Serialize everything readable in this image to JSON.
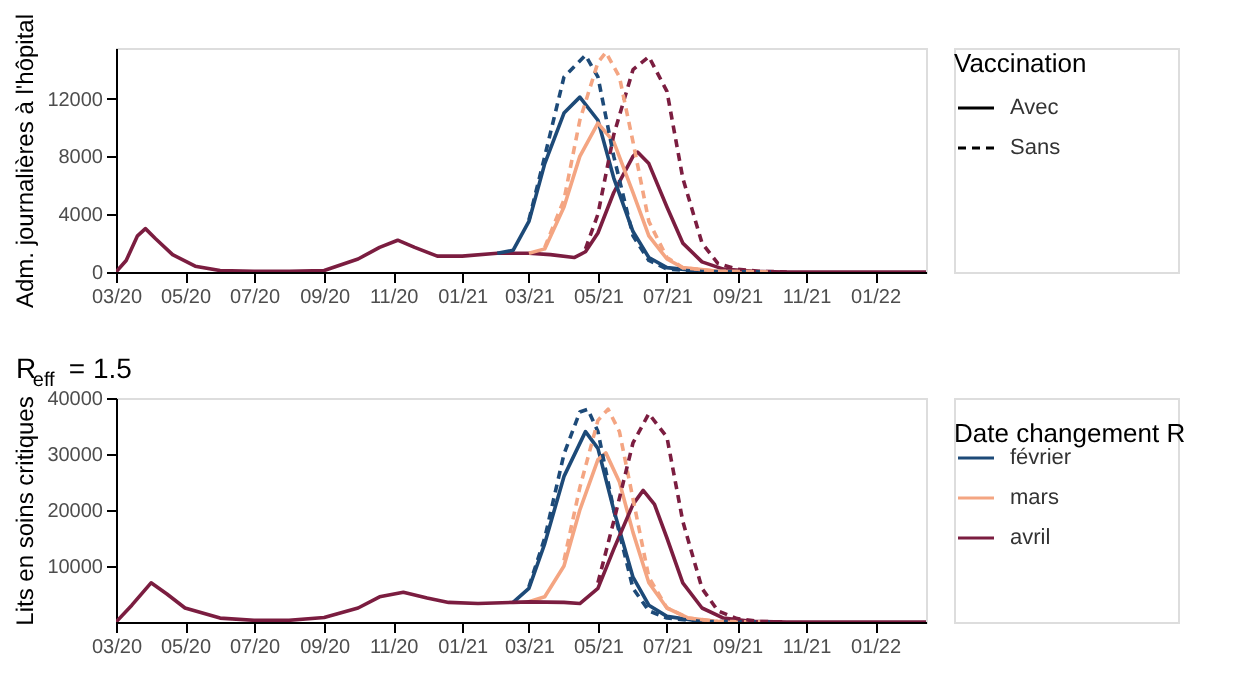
{
  "chart_data": [
    {
      "type": "line",
      "ylabel": "Adm. journalières à l'hôpital",
      "xlim": [
        "2020-03-01",
        "2022-02-15"
      ],
      "ylim": [
        0,
        15500
      ],
      "yticks": [
        0,
        4000,
        8000,
        12000
      ],
      "xticks": [
        {
          "value": "2020-03-01",
          "label": "03/20"
        },
        {
          "value": "2020-05-01",
          "label": "05/20"
        },
        {
          "value": "2020-07-01",
          "label": "07/20"
        },
        {
          "value": "2020-09-01",
          "label": "09/20"
        },
        {
          "value": "2020-11-01",
          "label": "11/20"
        },
        {
          "value": "2021-01-01",
          "label": "01/21"
        },
        {
          "value": "2021-03-01",
          "label": "03/21"
        },
        {
          "value": "2021-05-01",
          "label": "05/21"
        },
        {
          "value": "2021-07-01",
          "label": "07/21"
        },
        {
          "value": "2021-09-01",
          "label": "09/21"
        },
        {
          "value": "2021-11-01",
          "label": "11/21"
        },
        {
          "value": "2022-01-01",
          "label": "01/22"
        }
      ],
      "grid": false,
      "legend": "right",
      "legend_title": "Vaccination",
      "annotations": [
        "Avec",
        "Sans"
      ],
      "series": [
        {
          "color": "#7b1d40",
          "line_style": "solid",
          "x": [
            "2020-03-01",
            "2020-03-10",
            "2020-03-20",
            "2020-03-27",
            "2020-04-05",
            "2020-04-20",
            "2020-05-10",
            "2020-06-01",
            "2020-07-01",
            "2020-08-01",
            "2020-09-01",
            "2020-10-01",
            "2020-10-20",
            "2020-11-05",
            "2020-11-20",
            "2020-12-10",
            "2021-01-01",
            "2021-02-01",
            "2021-03-01",
            "2021-03-20",
            "2021-04-10",
            "2021-04-20",
            "2021-05-01",
            "2021-05-15",
            "2021-06-01",
            "2021-06-05",
            "2021-06-15",
            "2021-07-01",
            "2021-07-15",
            "2021-08-01",
            "2021-08-20",
            "2021-09-15",
            "2021-10-15",
            "2022-02-15"
          ],
          "values": [
            0,
            800,
            2500,
            3000,
            2300,
            1200,
            400,
            100,
            50,
            50,
            100,
            900,
            1700,
            2200,
            1700,
            1100,
            1100,
            1300,
            1300,
            1200,
            1000,
            1400,
            2700,
            5500,
            8000,
            8300,
            7500,
            4500,
            2000,
            700,
            200,
            50,
            0,
            0
          ]
        },
        {
          "color": "#7b1d40",
          "line_style": "dashed",
          "x": [
            "2021-04-20",
            "2021-05-01",
            "2021-05-15",
            "2021-06-01",
            "2021-06-15",
            "2021-07-01",
            "2021-07-15",
            "2021-08-01",
            "2021-08-15",
            "2021-09-01",
            "2021-09-20",
            "2021-10-15"
          ],
          "values": [
            1600,
            4000,
            9500,
            14000,
            14900,
            12500,
            6500,
            2000,
            600,
            200,
            50,
            0
          ]
        },
        {
          "color": "#1d4a78",
          "line_style": "solid",
          "x": [
            "2021-02-01",
            "2021-02-15",
            "2021-03-01",
            "2021-03-15",
            "2021-04-01",
            "2021-04-15",
            "2021-05-01",
            "2021-05-15",
            "2021-06-01",
            "2021-06-15",
            "2021-07-01",
            "2021-08-01",
            "2021-10-01"
          ],
          "values": [
            1300,
            1500,
            3500,
            7500,
            11000,
            12100,
            10500,
            6500,
            2800,
            1000,
            300,
            50,
            0
          ]
        },
        {
          "color": "#1d4a78",
          "line_style": "dashed",
          "x": [
            "2021-03-01",
            "2021-03-15",
            "2021-04-01",
            "2021-04-20",
            "2021-05-01",
            "2021-05-15",
            "2021-06-01",
            "2021-06-15",
            "2021-07-01",
            "2021-08-01",
            "2021-10-01"
          ],
          "values": [
            3600,
            8000,
            13500,
            15000,
            13500,
            8000,
            2500,
            800,
            200,
            30,
            0
          ]
        },
        {
          "color": "#f4a582",
          "line_style": "solid",
          "x": [
            "2021-03-01",
            "2021-03-15",
            "2021-04-01",
            "2021-04-15",
            "2021-05-01",
            "2021-05-15",
            "2021-06-01",
            "2021-06-15",
            "2021-07-01",
            "2021-07-15",
            "2021-08-15",
            "2021-10-01"
          ],
          "values": [
            1300,
            1600,
            4500,
            8000,
            10300,
            9000,
            5500,
            2500,
            900,
            300,
            50,
            0
          ]
        },
        {
          "color": "#f4a582",
          "line_style": "dashed",
          "x": [
            "2021-03-15",
            "2021-04-01",
            "2021-04-15",
            "2021-05-01",
            "2021-05-08",
            "2021-05-20",
            "2021-06-01",
            "2021-06-15",
            "2021-07-01",
            "2021-07-15",
            "2021-08-15",
            "2021-10-01"
          ],
          "values": [
            1700,
            5000,
            10500,
            14500,
            15200,
            13500,
            9000,
            3500,
            1000,
            300,
            50,
            0
          ]
        }
      ]
    },
    {
      "type": "line",
      "title": "R$_{eff}$ = 1.5",
      "ylabel": "Lits en soins critiques",
      "xlim": [
        "2020-03-01",
        "2022-02-15"
      ],
      "ylim": [
        0,
        40000
      ],
      "yticks": [
        10000,
        20000,
        30000,
        40000
      ],
      "grid": false,
      "legend": "right",
      "legend_title": "Date changement R",
      "xticks": [
        {
          "value": "2020-03-01",
          "label": "03/20"
        },
        {
          "value": "2020-05-01",
          "label": "05/20"
        },
        {
          "value": "2020-07-01",
          "label": "07/20"
        },
        {
          "value": "2020-09-01",
          "label": "09/20"
        },
        {
          "value": "2020-11-01",
          "label": "11/20"
        },
        {
          "value": "2021-01-01",
          "label": "01/21"
        },
        {
          "value": "2021-03-01",
          "label": "03/21"
        },
        {
          "value": "2021-05-01",
          "label": "05/21"
        },
        {
          "value": "2021-07-01",
          "label": "07/21"
        },
        {
          "value": "2021-09-01",
          "label": "09/21"
        },
        {
          "value": "2021-11-01",
          "label": "11/21"
        },
        {
          "value": "2022-01-01",
          "label": "01/22"
        }
      ],
      "series": [
        {
          "name": "février",
          "color": "#1d4a78",
          "line_style": "solid",
          "x": [
            "2021-02-15",
            "2021-03-01",
            "2021-03-15",
            "2021-04-01",
            "2021-04-20",
            "2021-05-01",
            "2021-05-15",
            "2021-06-01",
            "2021-06-15",
            "2021-07-01",
            "2021-08-01",
            "2021-10-01"
          ],
          "values": [
            3500,
            6000,
            14000,
            26000,
            34000,
            31000,
            20000,
            8000,
            3000,
            1000,
            100,
            0
          ]
        },
        {
          "color": "#1d4a78",
          "line_style": "dashed",
          "x": [
            "2021-03-01",
            "2021-03-15",
            "2021-04-01",
            "2021-04-15",
            "2021-04-22",
            "2021-05-01",
            "2021-05-15",
            "2021-06-01",
            "2021-06-15",
            "2021-07-01",
            "2021-08-01",
            "2021-10-01"
          ],
          "values": [
            6300,
            15000,
            30000,
            37500,
            38000,
            34000,
            20000,
            6000,
            2000,
            700,
            100,
            0
          ]
        },
        {
          "name": "mars",
          "color": "#f4a582",
          "line_style": "solid",
          "x": [
            "2021-03-01",
            "2021-03-15",
            "2021-04-01",
            "2021-04-15",
            "2021-05-01",
            "2021-05-08",
            "2021-05-20",
            "2021-06-01",
            "2021-06-15",
            "2021-07-01",
            "2021-07-20",
            "2021-08-15",
            "2021-10-01"
          ],
          "values": [
            3600,
            4500,
            10000,
            20000,
            29000,
            30200,
            25000,
            16000,
            7000,
            2500,
            700,
            100,
            0
          ]
        },
        {
          "color": "#f4a582",
          "line_style": "dashed",
          "x": [
            "2021-04-01",
            "2021-04-15",
            "2021-05-01",
            "2021-05-10",
            "2021-05-20",
            "2021-06-01",
            "2021-06-15",
            "2021-07-01",
            "2021-07-20",
            "2021-08-15",
            "2021-10-01"
          ],
          "values": [
            11000,
            24000,
            36000,
            38000,
            34000,
            22000,
            8000,
            2500,
            700,
            100,
            0
          ]
        },
        {
          "name": "avril",
          "color": "#7b1d40",
          "line_style": "solid",
          "x": [
            "2020-03-01",
            "2020-03-15",
            "2020-04-01",
            "2020-04-15",
            "2020-05-01",
            "2020-06-01",
            "2020-07-01",
            "2020-08-01",
            "2020-09-01",
            "2020-10-01",
            "2020-10-20",
            "2020-11-10",
            "2020-12-01",
            "2020-12-20",
            "2021-01-15",
            "2021-02-15",
            "2021-03-01",
            "2021-04-01",
            "2021-04-15",
            "2021-05-01",
            "2021-05-15",
            "2021-06-01",
            "2021-06-10",
            "2021-06-20",
            "2021-07-01",
            "2021-07-15",
            "2021-08-01",
            "2021-08-20",
            "2021-09-15",
            "2021-10-15",
            "2022-02-15"
          ],
          "values": [
            0,
            3000,
            7000,
            5000,
            2500,
            700,
            300,
            300,
            800,
            2500,
            4500,
            5300,
            4300,
            3500,
            3300,
            3500,
            3600,
            3500,
            3300,
            6000,
            13000,
            21000,
            23500,
            21000,
            15000,
            7000,
            2500,
            700,
            100,
            0,
            0
          ]
        },
        {
          "color": "#7b1d40",
          "line_style": "dashed",
          "x": [
            "2021-05-01",
            "2021-05-15",
            "2021-06-01",
            "2021-06-15",
            "2021-07-01",
            "2021-07-15",
            "2021-08-01",
            "2021-08-15",
            "2021-09-01",
            "2021-09-20",
            "2021-10-15"
          ],
          "values": [
            7000,
            18000,
            32000,
            37200,
            33000,
            18000,
            6000,
            2000,
            600,
            100,
            0
          ]
        }
      ]
    }
  ]
}
